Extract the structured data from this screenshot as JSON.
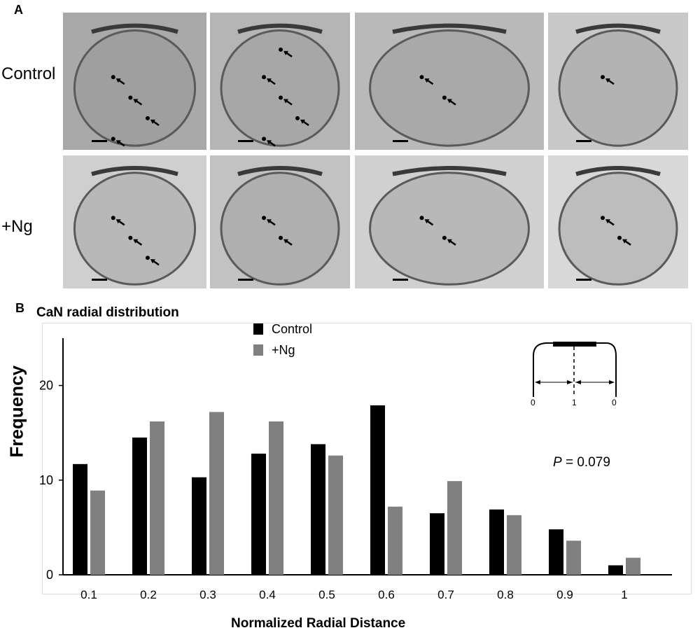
{
  "panel_a": {
    "letter": "A",
    "rows": [
      {
        "label": "Control",
        "images": [
          {
            "tone": "#a9a9a9",
            "arrows": 4
          },
          {
            "tone": "#b5b5b5",
            "arrows": 5
          },
          {
            "tone": "#b9b9b9",
            "arrows": 2
          },
          {
            "tone": "#c8c8c8",
            "arrows": 1
          }
        ]
      },
      {
        "label": "+Ng",
        "images": [
          {
            "tone": "#cfcfcf",
            "arrows": 3
          },
          {
            "tone": "#c2c2c2",
            "arrows": 2
          },
          {
            "tone": "#d0d0d0",
            "arrows": 2
          },
          {
            "tone": "#d8d8d8",
            "arrows": 2
          }
        ]
      }
    ]
  },
  "panel_b": {
    "letter": "B",
    "pvalue_label": "P",
    "pvalue_rest": " = 0.079",
    "schematic_labels": [
      "0",
      "1",
      "0"
    ]
  },
  "chart_data": {
    "type": "bar",
    "title": "CaN radial distribution",
    "xlabel": "Normalized Radial Distance",
    "ylabel": "Frequency",
    "categories": [
      "0.1",
      "0.2",
      "0.3",
      "0.4",
      "0.5",
      "0.6",
      "0.7",
      "0.8",
      "0.9",
      "1"
    ],
    "series": [
      {
        "name": "Control",
        "color": "#000000",
        "values": [
          11.7,
          14.5,
          10.3,
          12.8,
          13.8,
          17.9,
          6.5,
          6.9,
          4.8,
          1.0
        ]
      },
      {
        "name": "+Ng",
        "color": "#808080",
        "values": [
          8.9,
          16.2,
          17.2,
          16.2,
          12.6,
          7.2,
          9.9,
          6.3,
          3.6,
          1.8
        ]
      }
    ],
    "yticks": [
      0,
      10,
      20
    ],
    "ylim": [
      0,
      25
    ],
    "grid": false,
    "legend_position": "top-center"
  }
}
